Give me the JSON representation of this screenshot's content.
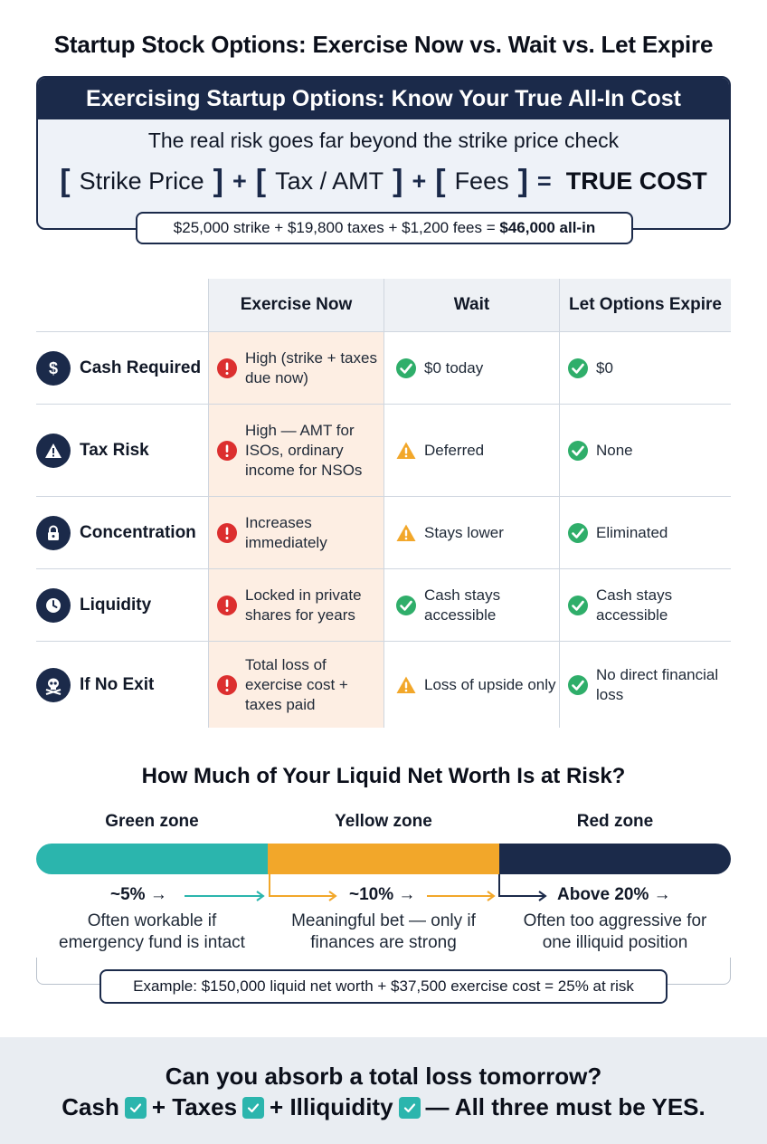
{
  "page_title": "Startup Stock Options: Exercise Now vs. Wait vs. Let Expire",
  "cost_box": {
    "header": "Exercising Startup Options: Know Your True All-In Cost",
    "subtitle": "The real risk goes far beyond the strike price check",
    "equation": {
      "term1": "Strike Price",
      "term2": "Tax / AMT",
      "term3": "Fees",
      "plus": "+",
      "equals": "=",
      "result": "TRUE COST"
    },
    "example_prefix": "$25,000 strike + $19,800 taxes + $1,200 fees = ",
    "example_total": "$46,000 all-in"
  },
  "table": {
    "headers": [
      "",
      "Exercise Now",
      "Wait",
      "Let Options Expire"
    ],
    "rows": [
      {
        "label": "Cash Required",
        "icon": "dollar-icon",
        "now": {
          "text": "High (strike + taxes due now)",
          "status": "danger"
        },
        "wait": {
          "text": "$0 today",
          "status": "ok"
        },
        "expire": {
          "text": "$0",
          "status": "ok"
        }
      },
      {
        "label": "Tax Risk",
        "icon": "warning-icon",
        "now": {
          "text": "High — AMT for ISOs, ordinary income for NSOs",
          "status": "danger"
        },
        "wait": {
          "text": "Deferred",
          "status": "caution"
        },
        "expire": {
          "text": "None",
          "status": "ok"
        }
      },
      {
        "label": "Concentration",
        "icon": "lock-icon",
        "now": {
          "text": "Increases immediately",
          "status": "danger"
        },
        "wait": {
          "text": "Stays lower",
          "status": "caution"
        },
        "expire": {
          "text": "Eliminated",
          "status": "ok"
        }
      },
      {
        "label": "Liquidity",
        "icon": "clock-icon",
        "now": {
          "text": "Locked in private shares for years",
          "status": "danger"
        },
        "wait": {
          "text": "Cash stays accessible",
          "status": "ok"
        },
        "expire": {
          "text": "Cash stays accessible",
          "status": "ok"
        }
      },
      {
        "label": "If No Exit",
        "icon": "skull-icon",
        "now": {
          "text": "Total loss of exercise cost + taxes paid",
          "status": "danger"
        },
        "wait": {
          "text": "Loss of upside only",
          "status": "caution"
        },
        "expire": {
          "text": "No direct financial loss",
          "status": "ok"
        }
      }
    ]
  },
  "risk": {
    "title": "How Much of Your Liquid Net Worth Is at Risk?",
    "zones": [
      {
        "name": "Green zone",
        "threshold": "~5% →",
        "desc_line1": "Often workable if",
        "desc_line2": "emergency fund is intact",
        "color": "#2bb5ad"
      },
      {
        "name": "Yellow zone",
        "threshold": "~10% →",
        "desc_line1": "Meaningful bet — only if",
        "desc_line2": "finances are strong",
        "color": "#f2a72a"
      },
      {
        "name": "Red zone",
        "threshold": "Above 20% →",
        "desc_line1": "Often too aggressive for",
        "desc_line2": "one illiquid position",
        "color": "#1b2a4a"
      }
    ],
    "example": "Example: $150,000 liquid net worth + $37,500 exercise cost = 25% at risk"
  },
  "footer": {
    "question": "Can you absorb a total loss tomorrow?",
    "item1": "Cash",
    "item2": "+ Taxes",
    "item3": "+ Illiquidity",
    "tail": "— All three must be YES."
  },
  "colors": {
    "navy": "#1b2a4a",
    "teal": "#2bb5ad",
    "amber": "#f2a72a",
    "danger": "#dc2f2f",
    "ok": "#2fae6a",
    "highlight": "#fdeee3"
  }
}
